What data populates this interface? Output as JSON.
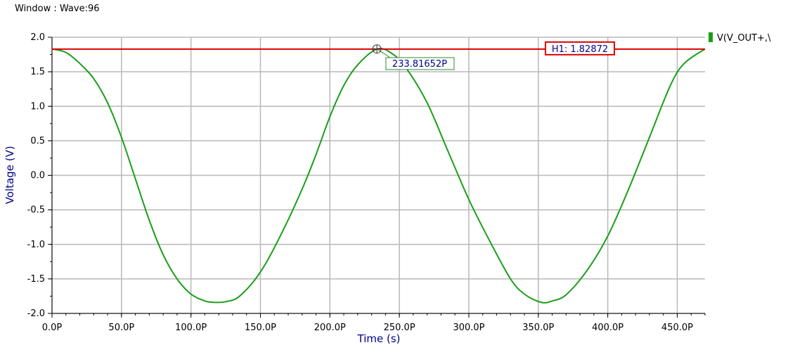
{
  "window": {
    "title": "Window : Wave:96"
  },
  "chart_data": {
    "type": "line",
    "xlabel": "Time (s)",
    "ylabel": "Voltage (V)",
    "xlim": [
      0,
      470
    ],
    "ylim": [
      -2.0,
      2.0
    ],
    "x_unit_suffix": "P",
    "grid": true,
    "x_ticks": [
      "0.0P",
      "50.0P",
      "100.0P",
      "150.0P",
      "200.0P",
      "250.0P",
      "300.0P",
      "350.0P",
      "400.0P",
      "450.0P"
    ],
    "x_tick_values": [
      0,
      50,
      100,
      150,
      200,
      250,
      300,
      350,
      400,
      450
    ],
    "y_ticks": [
      "2.0",
      "1.5",
      "1.0",
      "0.5",
      "0.0",
      "-0.5",
      "-1.0",
      "-1.5",
      "-2.0"
    ],
    "y_tick_values": [
      2.0,
      1.5,
      1.0,
      0.5,
      0.0,
      -0.5,
      -1.0,
      -1.5,
      -2.0
    ],
    "legend": {
      "position": "top-right",
      "entries": [
        "V(V_OUT+,\\"
      ]
    },
    "series": [
      {
        "name": "V(V_OUT+,\\",
        "color": "#1a9e1a",
        "x": [
          0,
          10,
          20,
          30,
          40,
          50,
          60,
          70,
          80,
          90,
          100,
          110,
          117,
          125,
          135,
          150,
          165,
          180,
          190,
          200,
          210,
          220,
          234,
          245,
          255,
          270,
          285,
          300,
          315,
          330,
          340,
          352,
          360,
          370,
          385,
          400,
          415,
          430,
          445,
          455,
          470
        ],
        "y": [
          1.83,
          1.78,
          1.62,
          1.4,
          1.05,
          0.55,
          -0.05,
          -0.65,
          -1.15,
          -1.5,
          -1.72,
          -1.82,
          -1.84,
          -1.83,
          -1.75,
          -1.4,
          -0.85,
          -0.2,
          0.3,
          0.85,
          1.3,
          1.6,
          1.83,
          1.76,
          1.55,
          1.05,
          0.35,
          -0.35,
          -0.95,
          -1.5,
          -1.72,
          -1.84,
          -1.82,
          -1.73,
          -1.38,
          -0.88,
          -0.2,
          0.55,
          1.3,
          1.62,
          1.83
        ]
      }
    ],
    "markers": {
      "horizontal": {
        "label": "H1: 1.82872",
        "value": 1.82872,
        "color": "#dd0000"
      },
      "point": {
        "label": "233.81652P",
        "x": 233.81652,
        "y": 1.83
      }
    }
  }
}
